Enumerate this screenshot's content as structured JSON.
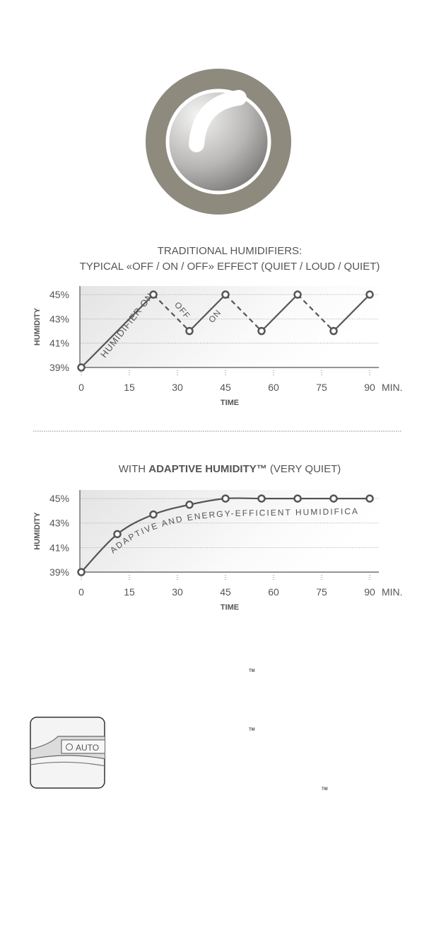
{
  "chart_data": [
    {
      "type": "line",
      "title_lines": [
        "TRADITIONAL HUMIDIFIERS:",
        "TYPICAL «OFF / ON / OFF» EFFECT (QUIET / LOUD / QUIET)"
      ],
      "x_label": "TIME",
      "y_label": "HUMIDITY",
      "x_unit": "MIN.",
      "x": [
        0,
        22.5,
        33.75,
        45,
        56.25,
        67.5,
        78.75,
        90
      ],
      "values": [
        39,
        45,
        42,
        45,
        42,
        45,
        42,
        45
      ],
      "color": "#555555",
      "dashed_descents": true,
      "annotations": [
        "HUMIDIFIER ON",
        "OFF",
        "ON"
      ],
      "xlim": [
        0,
        93.3
      ],
      "xticks": [
        0,
        15,
        30,
        45,
        60,
        75,
        90
      ],
      "ylim": [
        39,
        45.7
      ],
      "yticks": [
        {
          "value": 39,
          "label": "39%"
        },
        {
          "value": 41,
          "label": "41%"
        },
        {
          "value": 43,
          "label": "43%"
        },
        {
          "value": 45,
          "label": "45%"
        }
      ],
      "grid": true
    },
    {
      "type": "line",
      "title_prefix": "WITH ",
      "title_bold": "ADAPTIVE HUMIDITY™",
      "title_suffix": " (VERY QUIET)",
      "x_label": "TIME",
      "y_label": "HUMIDITY",
      "x_unit": "MIN.",
      "x": [
        0,
        11.25,
        22.5,
        33.75,
        45,
        56.25,
        67.5,
        78.75,
        90
      ],
      "values": [
        39,
        42.1,
        43.7,
        44.5,
        45,
        45,
        45,
        45,
        45
      ],
      "color": "#555555",
      "dashed_descents": false,
      "annotations": [
        "ADAPTIVE AND ENERGY-EFFICIENT HUMIDIFICATION"
      ],
      "xlim": [
        0,
        93.3
      ],
      "xticks": [
        0,
        15,
        30,
        45,
        60,
        75,
        90
      ],
      "ylim": [
        39,
        45.7
      ],
      "yticks": [
        {
          "value": 39,
          "label": "39%"
        },
        {
          "value": 41,
          "label": "41%"
        },
        {
          "value": 43,
          "label": "43%"
        },
        {
          "value": 45,
          "label": "45%"
        }
      ],
      "grid": true
    }
  ],
  "tm_marks": [
    "TM",
    "TM",
    "TM"
  ],
  "button_label": "AUTO"
}
